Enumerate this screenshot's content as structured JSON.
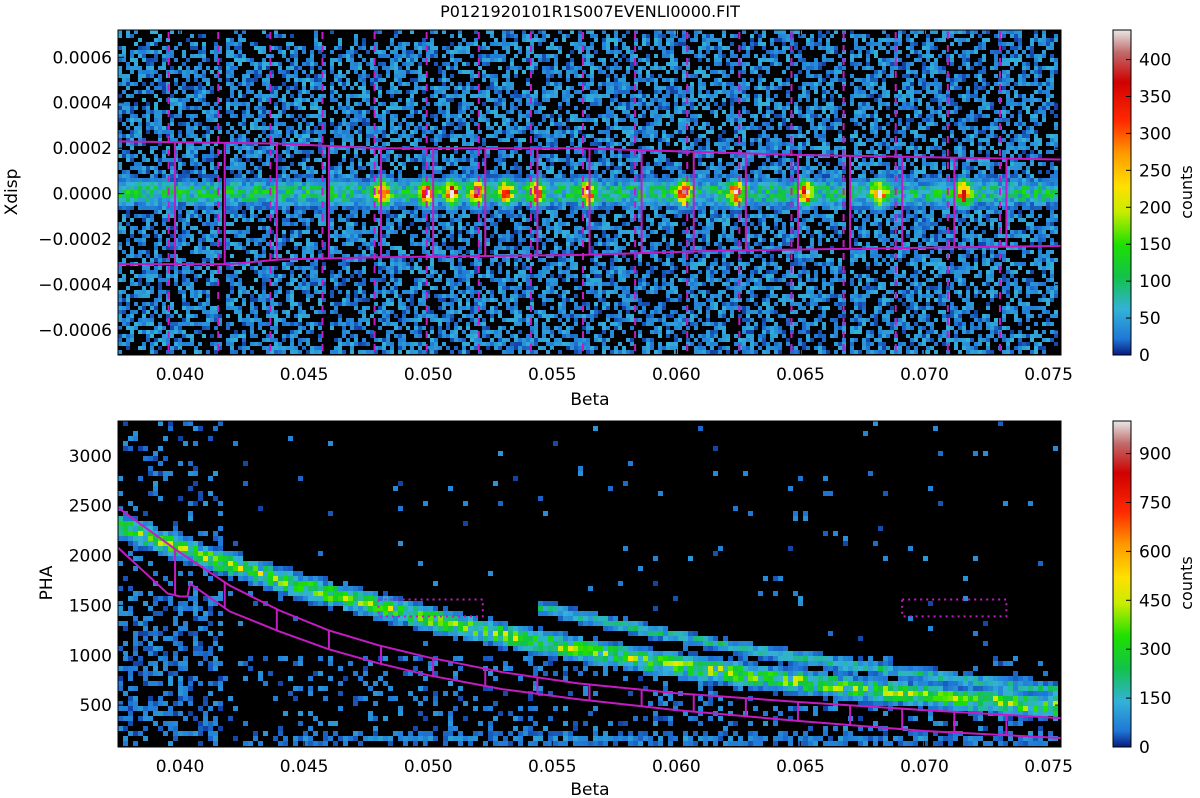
{
  "title": "P0121920101R1S007EVENLI0000.FIT",
  "chart_data": [
    {
      "type": "heatmap",
      "xlabel": "Beta",
      "ylabel": "Xdisp",
      "xlim": [
        0.0375,
        0.0755
      ],
      "ylim": [
        -0.00071,
        0.00072
      ],
      "x_ticks": [
        {
          "value": 0.04,
          "label": "0.040"
        },
        {
          "value": 0.045,
          "label": "0.045"
        },
        {
          "value": 0.05,
          "label": "0.050"
        },
        {
          "value": 0.055,
          "label": "0.055"
        },
        {
          "value": 0.06,
          "label": "0.060"
        },
        {
          "value": 0.065,
          "label": "0.065"
        },
        {
          "value": 0.07,
          "label": "0.070"
        },
        {
          "value": 0.075,
          "label": "0.075"
        }
      ],
      "y_ticks": [
        {
          "value": 0.0006,
          "label": "0.0006"
        },
        {
          "value": 0.0004,
          "label": "0.0004"
        },
        {
          "value": 0.0002,
          "label": "0.0002"
        },
        {
          "value": 0.0,
          "label": "0.0000"
        },
        {
          "value": -0.0002,
          "label": "−0.0002"
        },
        {
          "value": -0.0004,
          "label": "−0.0004"
        },
        {
          "value": -0.0006,
          "label": "−0.0006"
        }
      ],
      "colorbar": {
        "label": "counts",
        "range": [
          0,
          440
        ],
        "ticks": [
          {
            "value": 0,
            "label": "0"
          },
          {
            "value": 50,
            "label": "50"
          },
          {
            "value": 100,
            "label": "100"
          },
          {
            "value": 150,
            "label": "150"
          },
          {
            "value": 200,
            "label": "200"
          },
          {
            "value": 250,
            "label": "250"
          },
          {
            "value": 300,
            "label": "300"
          },
          {
            "value": 350,
            "label": "350"
          },
          {
            "value": 400,
            "label": "400"
          }
        ]
      },
      "band": {
        "center": 0.0,
        "max_counts": 420,
        "peak_beta": [
          0.0482,
          0.05,
          0.051,
          0.052,
          0.0532,
          0.0544,
          0.0565,
          0.0604,
          0.0625,
          0.0653,
          0.0683,
          0.0717
        ]
      },
      "chip_gap_beta": [
        0.0418,
        0.046,
        0.067
      ],
      "extraction_region": {
        "color": "#c41cc4",
        "top_edge": [
          [
            0.0375,
            0.00023
          ],
          [
            0.044,
            0.00022
          ],
          [
            0.048,
            0.0002
          ],
          [
            0.056,
            0.0002
          ],
          [
            0.065,
            0.00017
          ],
          [
            0.0755,
            0.00015
          ]
        ],
        "bottom_edge": [
          [
            0.0375,
            -0.00031
          ],
          [
            0.042,
            -0.00031
          ],
          [
            0.044,
            -0.00029
          ],
          [
            0.048,
            -0.00028
          ],
          [
            0.056,
            -0.00027
          ],
          [
            0.062,
            -0.00025
          ],
          [
            0.0755,
            -0.00023
          ]
        ],
        "solid_dividers": [
          0.0398,
          0.0418,
          0.0439,
          0.046,
          0.0481,
          0.0502,
          0.0523,
          0.0544,
          0.0565,
          0.0586,
          0.0607,
          0.0628,
          0.0649,
          0.067,
          0.0691,
          0.0712,
          0.0733
        ],
        "dashed_dividers": [
          0.0397,
          0.0417,
          0.0438,
          0.0459,
          0.048,
          0.0501,
          0.0522,
          0.0543,
          0.0564,
          0.0585,
          0.0606,
          0.0627,
          0.0648,
          0.0669,
          0.069,
          0.0711,
          0.0732
        ]
      }
    },
    {
      "type": "heatmap",
      "xlabel": "Beta",
      "ylabel": "PHA",
      "xlim": [
        0.0375,
        0.0755
      ],
      "ylim": [
        80,
        3350
      ],
      "x_ticks": [
        {
          "value": 0.04,
          "label": "0.040"
        },
        {
          "value": 0.045,
          "label": "0.045"
        },
        {
          "value": 0.05,
          "label": "0.050"
        },
        {
          "value": 0.055,
          "label": "0.055"
        },
        {
          "value": 0.06,
          "label": "0.060"
        },
        {
          "value": 0.065,
          "label": "0.065"
        },
        {
          "value": 0.07,
          "label": "0.070"
        },
        {
          "value": 0.075,
          "label": "0.075"
        }
      ],
      "y_ticks": [
        {
          "value": 3000,
          "label": "3000"
        },
        {
          "value": 2500,
          "label": "2500"
        },
        {
          "value": 2000,
          "label": "2000"
        },
        {
          "value": 1500,
          "label": "1500"
        },
        {
          "value": 1000,
          "label": "1000"
        },
        {
          "value": 500,
          "label": "500"
        }
      ],
      "colorbar": {
        "label": "counts",
        "range": [
          0,
          1000
        ],
        "ticks": [
          {
            "value": 0,
            "label": "0"
          },
          {
            "value": 150,
            "label": "150"
          },
          {
            "value": 300,
            "label": "300"
          },
          {
            "value": 450,
            "label": "450"
          },
          {
            "value": 600,
            "label": "600"
          },
          {
            "value": 750,
            "label": "750"
          },
          {
            "value": 900,
            "label": "900"
          }
        ]
      },
      "first_order_band": {
        "pha_at_min_beta": 2300,
        "pha_at_max_beta": 470,
        "max_counts": 700
      },
      "second_order_band": {
        "pha_at_beta_0_055": 1450,
        "pha_at_max_beta": 640
      },
      "order_region": {
        "color": "#c41cc4",
        "upper_edge": [
          [
            0.0375,
            2480
          ],
          [
            0.04,
            2030
          ],
          [
            0.042,
            1700
          ],
          [
            0.044,
            1450
          ],
          [
            0.046,
            1250
          ],
          [
            0.048,
            1100
          ],
          [
            0.05,
            980
          ],
          [
            0.053,
            830
          ],
          [
            0.056,
            720
          ],
          [
            0.06,
            620
          ],
          [
            0.065,
            530
          ],
          [
            0.07,
            450
          ],
          [
            0.0755,
            370
          ]
        ],
        "lower_edge": [
          [
            0.0375,
            2080
          ],
          [
            0.0395,
            1620
          ],
          [
            0.04,
            1590
          ],
          [
            0.0403,
            1590
          ],
          [
            0.0404,
            1720
          ],
          [
            0.042,
            1440
          ],
          [
            0.044,
            1240
          ],
          [
            0.046,
            1060
          ],
          [
            0.048,
            920
          ],
          [
            0.05,
            800
          ],
          [
            0.053,
            660
          ],
          [
            0.056,
            560
          ],
          [
            0.06,
            450
          ],
          [
            0.065,
            340
          ],
          [
            0.07,
            240
          ],
          [
            0.0755,
            170
          ]
        ],
        "dividers": [
          0.0398,
          0.0418,
          0.0439,
          0.046,
          0.0481,
          0.0502,
          0.0523,
          0.0544,
          0.0565,
          0.0586,
          0.0607,
          0.0628,
          0.0649,
          0.067,
          0.0691,
          0.0712,
          0.0733
        ]
      },
      "dotted_boxes": [
        {
          "beta": [
            0.048,
            0.0522
          ],
          "pha": [
            1390,
            1560
          ]
        },
        {
          "beta": [
            0.0691,
            0.0733
          ],
          "pha": [
            1390,
            1560
          ]
        }
      ]
    }
  ]
}
